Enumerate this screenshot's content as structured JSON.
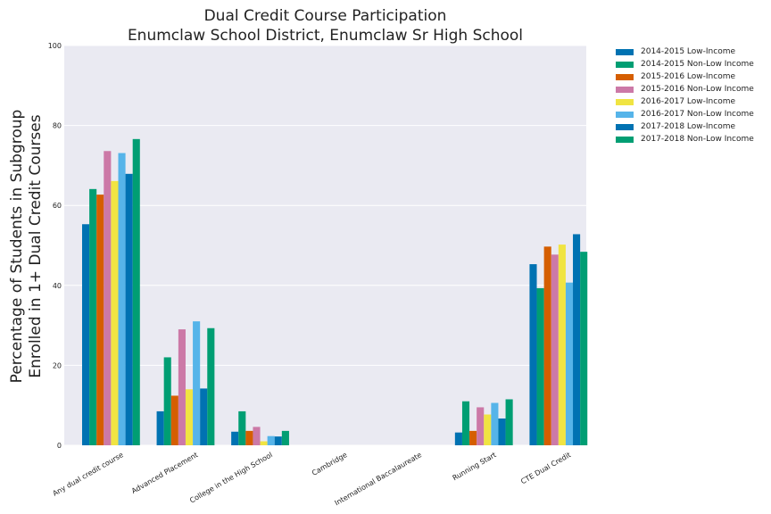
{
  "chart_data": {
    "type": "bar",
    "title": [
      "Dual Credit Course Participation",
      "Enumclaw School District, Enumclaw Sr High School"
    ],
    "xlabel": "",
    "ylabel": [
      "Percentage of Students in Subgroup",
      "Enrolled in 1+ Dual Credit Courses"
    ],
    "ylim": [
      0,
      100
    ],
    "yticks": [
      "0",
      "20",
      "40",
      "60",
      "80",
      "100"
    ],
    "grid": true,
    "legend_position": "outside-top-right",
    "categories": [
      "Any dual credit course",
      "Advanced Placement",
      "College in the High School",
      "Cambridge",
      "International Baccalaureate",
      "Running Start",
      "CTE Dual Credit"
    ],
    "series": [
      {
        "name": "2014-2015 Low-Income",
        "color": "#0072b2",
        "values": [
          55.3,
          8.5,
          3.4,
          0,
          0,
          3.2,
          45.3
        ]
      },
      {
        "name": "2014-2015 Non-Low Income",
        "color": "#009e73",
        "values": [
          64.1,
          22.0,
          8.5,
          0,
          0,
          11.0,
          39.3
        ]
      },
      {
        "name": "2015-2016 Low-Income",
        "color": "#d55e00",
        "values": [
          62.7,
          12.4,
          3.6,
          0,
          0,
          3.6,
          49.7
        ]
      },
      {
        "name": "2015-2016 Non-Low Income",
        "color": "#cc79a7",
        "values": [
          73.6,
          29.0,
          4.6,
          0,
          0,
          9.5,
          47.7
        ]
      },
      {
        "name": "2016-2017 Low-Income",
        "color": "#f0e442",
        "values": [
          66.1,
          14.0,
          1.0,
          0,
          0,
          7.7,
          50.2
        ]
      },
      {
        "name": "2016-2017 Non-Low Income",
        "color": "#56b4e9",
        "values": [
          73.1,
          31.0,
          2.3,
          0,
          0,
          10.6,
          40.7
        ]
      },
      {
        "name": "2017-2018 Low-Income",
        "color": "#0072b2",
        "values": [
          67.9,
          14.2,
          2.2,
          0,
          0,
          6.7,
          52.8
        ]
      },
      {
        "name": "2017-2018 Non-Low Income",
        "color": "#009e73",
        "values": [
          76.6,
          29.3,
          3.6,
          0,
          0,
          11.5,
          48.4
        ]
      }
    ]
  }
}
